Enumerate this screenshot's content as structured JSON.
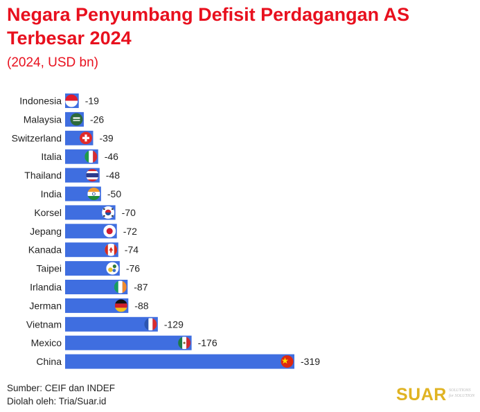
{
  "title": "Negara Penyumbang Defisit Perdagangan AS Terbesar 2024",
  "subtitle": "(2024, USD bn)",
  "footer": {
    "source": "Sumber: CEIF dan INDEF",
    "processed_by": "Diolah oleh: Tria/Suar.id"
  },
  "brand": {
    "logo_text": "SUAR",
    "tag_line1": "SOLUTIONS",
    "tag_line2": "for SOLUTION"
  },
  "colors": {
    "title": "#e8101e",
    "bar": "#3f6ee0",
    "brand": "#e0b322"
  },
  "chart_data": {
    "type": "bar",
    "orientation": "horizontal",
    "categories": [
      "Indonesia",
      "Malaysia",
      "Switzerland",
      "Italia",
      "Thailand",
      "India",
      "Korsel",
      "Jepang",
      "Kanada",
      "Taipei",
      "Irlandia",
      "Jerman",
      "Vietnam",
      "Mexico",
      "China"
    ],
    "values": [
      -19,
      -26,
      -39,
      -46,
      -48,
      -50,
      -70,
      -72,
      -74,
      -76,
      -87,
      -88,
      -129,
      -176,
      -319
    ],
    "data_labels": [
      "-19",
      "-26",
      "-39",
      "-46",
      "-48",
      "-50",
      "-70",
      "-72",
      "-74",
      "-76",
      "-87",
      "-88",
      "-129",
      "-176",
      "-319"
    ],
    "flag_icons": [
      "indonesia-flag-icon",
      "malaysia-flag-icon",
      "switzerland-flag-icon",
      "italy-flag-icon",
      "thailand-flag-icon",
      "india-flag-icon",
      "south-korea-flag-icon",
      "japan-flag-icon",
      "canada-flag-icon",
      "taiwan-flag-icon",
      "ireland-flag-icon",
      "germany-flag-icon",
      "vietnam-flag-icon",
      "mexico-flag-icon",
      "china-flag-icon"
    ],
    "xlim": [
      0,
      -319
    ],
    "grid": false,
    "legend": "none"
  }
}
